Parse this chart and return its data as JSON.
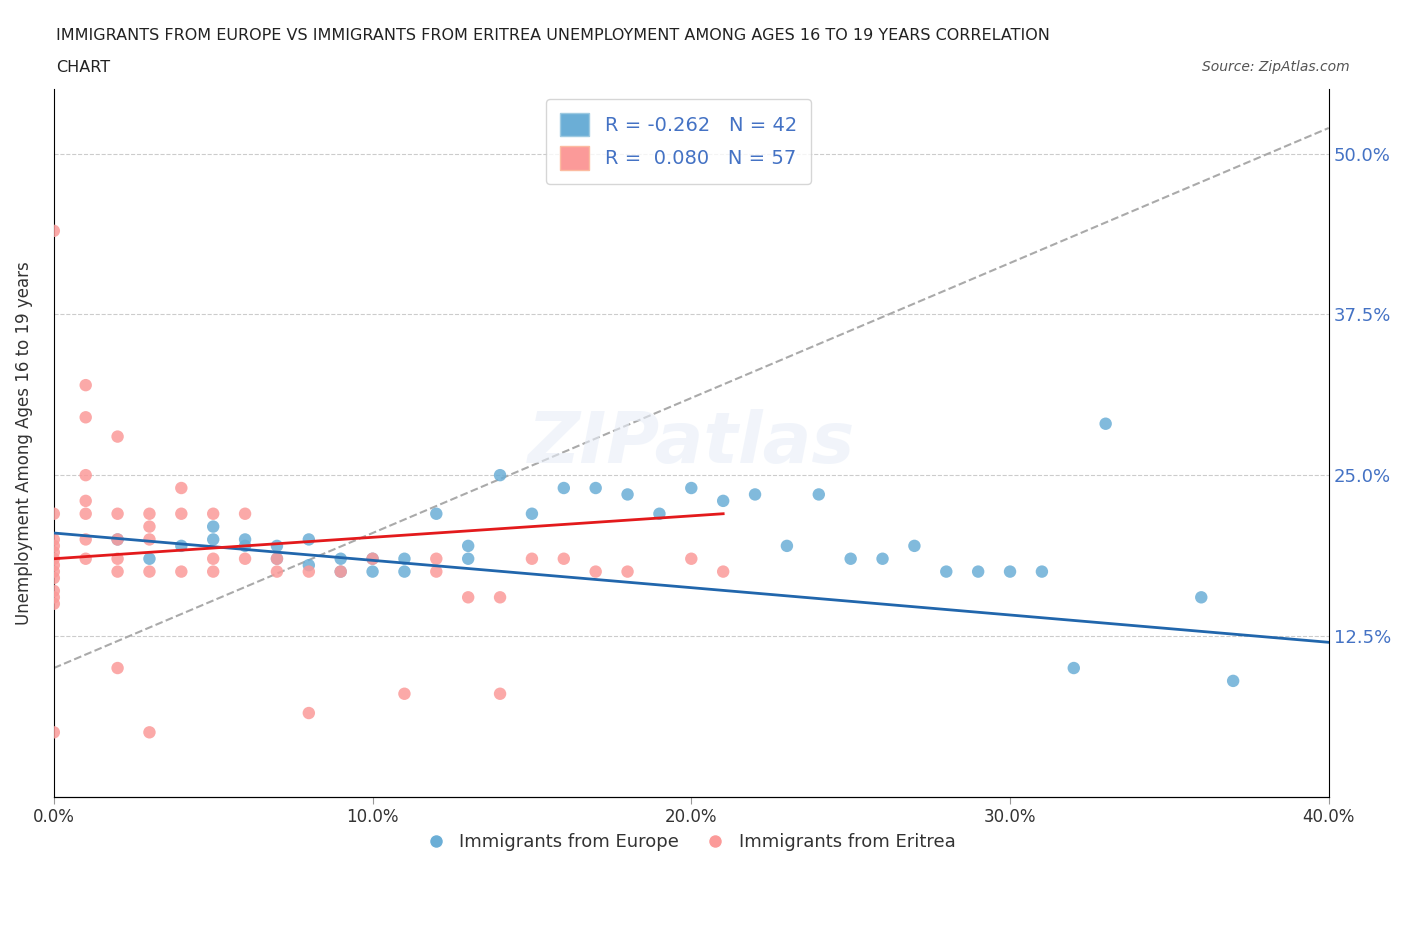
{
  "title_line1": "IMMIGRANTS FROM EUROPE VS IMMIGRANTS FROM ERITREA UNEMPLOYMENT AMONG AGES 16 TO 19 YEARS CORRELATION",
  "title_line2": "CHART",
  "source_text": "Source: ZipAtlas.com",
  "xlabel": "",
  "ylabel": "Unemployment Among Ages 16 to 19 years",
  "xlim": [
    0.0,
    0.4
  ],
  "ylim": [
    0.0,
    0.55
  ],
  "xtick_labels": [
    "0.0%",
    "10.0%",
    "20.0%",
    "30.0%",
    "40.0%"
  ],
  "xtick_vals": [
    0.0,
    0.1,
    0.2,
    0.3,
    0.4
  ],
  "ytick_labels": [
    "12.5%",
    "25.0%",
    "37.5%",
    "50.0%"
  ],
  "ytick_vals": [
    0.125,
    0.25,
    0.375,
    0.5
  ],
  "blue_color": "#6baed6",
  "pink_color": "#fb9a99",
  "blue_line_color": "#2166ac",
  "pink_line_color": "#e31a1c",
  "trend_line_color": "#aaaaaa",
  "legend_R_blue": "R = -0.262",
  "legend_N_blue": "N = 42",
  "legend_R_pink": "R =  0.080",
  "legend_N_pink": "N = 57",
  "legend_label_blue": "Immigrants from Europe",
  "legend_label_pink": "Immigrants from Eritrea",
  "watermark": "ZIPatlas",
  "blue_scatter_x": [
    0.02,
    0.03,
    0.04,
    0.05,
    0.05,
    0.06,
    0.06,
    0.07,
    0.07,
    0.08,
    0.08,
    0.09,
    0.09,
    0.1,
    0.1,
    0.11,
    0.11,
    0.12,
    0.13,
    0.13,
    0.14,
    0.15,
    0.16,
    0.17,
    0.18,
    0.19,
    0.2,
    0.21,
    0.22,
    0.23,
    0.24,
    0.25,
    0.26,
    0.27,
    0.28,
    0.29,
    0.3,
    0.31,
    0.32,
    0.33,
    0.36,
    0.37
  ],
  "blue_scatter_y": [
    0.2,
    0.185,
    0.195,
    0.21,
    0.2,
    0.2,
    0.195,
    0.195,
    0.185,
    0.18,
    0.2,
    0.185,
    0.175,
    0.185,
    0.175,
    0.175,
    0.185,
    0.22,
    0.195,
    0.185,
    0.25,
    0.22,
    0.24,
    0.24,
    0.235,
    0.22,
    0.24,
    0.23,
    0.235,
    0.195,
    0.235,
    0.185,
    0.185,
    0.195,
    0.175,
    0.175,
    0.175,
    0.175,
    0.1,
    0.29,
    0.155,
    0.09
  ],
  "pink_scatter_x": [
    0.0,
    0.0,
    0.0,
    0.0,
    0.0,
    0.0,
    0.0,
    0.0,
    0.0,
    0.0,
    0.0,
    0.0,
    0.0,
    0.01,
    0.01,
    0.01,
    0.01,
    0.01,
    0.01,
    0.01,
    0.02,
    0.02,
    0.02,
    0.02,
    0.02,
    0.02,
    0.03,
    0.03,
    0.03,
    0.03,
    0.03,
    0.04,
    0.04,
    0.04,
    0.05,
    0.05,
    0.05,
    0.06,
    0.06,
    0.07,
    0.07,
    0.08,
    0.08,
    0.09,
    0.1,
    0.11,
    0.12,
    0.12,
    0.13,
    0.14,
    0.14,
    0.15,
    0.16,
    0.17,
    0.18,
    0.2,
    0.21
  ],
  "pink_scatter_y": [
    0.44,
    0.22,
    0.2,
    0.195,
    0.19,
    0.185,
    0.18,
    0.175,
    0.17,
    0.16,
    0.155,
    0.15,
    0.05,
    0.32,
    0.295,
    0.25,
    0.23,
    0.22,
    0.2,
    0.185,
    0.28,
    0.22,
    0.2,
    0.185,
    0.175,
    0.1,
    0.22,
    0.21,
    0.2,
    0.175,
    0.05,
    0.24,
    0.22,
    0.175,
    0.22,
    0.185,
    0.175,
    0.22,
    0.185,
    0.185,
    0.175,
    0.175,
    0.065,
    0.175,
    0.185,
    0.08,
    0.175,
    0.185,
    0.155,
    0.155,
    0.08,
    0.185,
    0.185,
    0.175,
    0.175,
    0.185,
    0.175
  ],
  "blue_trend_x": [
    0.0,
    0.4
  ],
  "blue_trend_y": [
    0.205,
    0.12
  ],
  "pink_trend_x": [
    0.0,
    0.21
  ],
  "pink_trend_y": [
    0.185,
    0.22
  ],
  "diag_trend_x": [
    0.0,
    0.4
  ],
  "diag_trend_y": [
    0.1,
    0.52
  ]
}
